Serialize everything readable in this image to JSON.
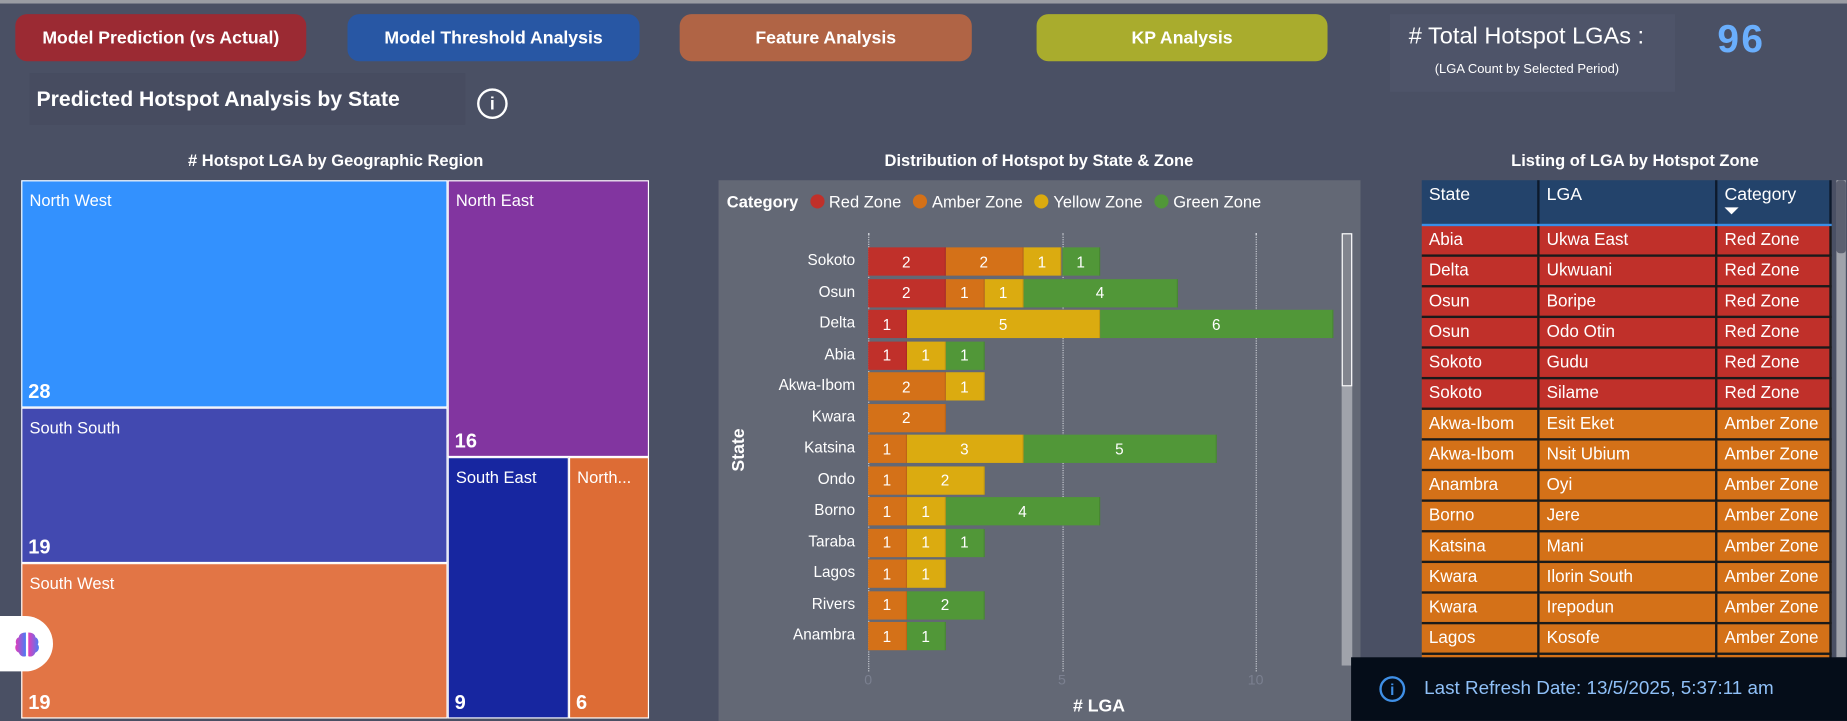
{
  "nav": [
    {
      "label": "Model Prediction (vs Actual)",
      "color": "#9b2a33"
    },
    {
      "label": "Model Threshold Analysis",
      "color": "#2857a4"
    },
    {
      "label": "Feature Analysis",
      "color": "#b06445"
    },
    {
      "label": "KP Analysis",
      "color": "#a9ac2d"
    }
  ],
  "kpi": {
    "title": "# Total Hotspot LGAs :",
    "subtitle": "(LGA Count by Selected Period)",
    "value": "96"
  },
  "page": {
    "title": "Predicted Hotspot Analysis by State",
    "info_icon": "info-circle-icon"
  },
  "treemap": {
    "title": "# Hotspot LGA by Geographic Region",
    "regions": [
      {
        "name": "North West",
        "value": "28",
        "color": "#3391fe"
      },
      {
        "name": "South South",
        "value": "19",
        "color": "#4249b0"
      },
      {
        "name": "South West",
        "value": "19",
        "color": "#e27545"
      },
      {
        "name": "North East",
        "value": "16",
        "color": "#8235a0"
      },
      {
        "name": "South East",
        "value": "9",
        "color": "#1726a0"
      },
      {
        "name": "North...",
        "value": "6",
        "color": "#dd6c35"
      }
    ]
  },
  "chart_data": {
    "type": "bar",
    "orientation": "horizontal",
    "stacked": true,
    "title": "Distribution of Hotspot by State & Zone",
    "legend_title": "Category",
    "legend_position": "top-left",
    "xlabel": "# LGA",
    "ylabel": "State",
    "xlim": [
      0,
      12
    ],
    "xticks": [
      "0",
      "5",
      "10"
    ],
    "categories": [
      "Sokoto",
      "Osun",
      "Delta",
      "Abia",
      "Akwa-Ibom",
      "Kwara",
      "Katsina",
      "Ondo",
      "Borno",
      "Taraba",
      "Lagos",
      "Rivers",
      "Anambra"
    ],
    "series": [
      {
        "name": "Red Zone",
        "color": "#c0302a",
        "values": [
          2,
          2,
          1,
          1,
          0,
          0,
          0,
          0,
          0,
          0,
          0,
          0,
          0
        ]
      },
      {
        "name": "Amber Zone",
        "color": "#d47118",
        "values": [
          2,
          1,
          0,
          0,
          2,
          2,
          1,
          1,
          1,
          1,
          1,
          1,
          1
        ]
      },
      {
        "name": "Yellow Zone",
        "color": "#dbab10",
        "values": [
          1,
          1,
          5,
          1,
          1,
          0,
          3,
          2,
          1,
          1,
          1,
          0,
          0
        ]
      },
      {
        "name": "Green Zone",
        "color": "#519738",
        "values": [
          1,
          4,
          6,
          1,
          0,
          0,
          5,
          0,
          4,
          1,
          0,
          2,
          1
        ]
      }
    ]
  },
  "table": {
    "title": "Listing of LGA by Hotspot Zone",
    "columns": [
      "State",
      "LGA",
      "Category"
    ],
    "zone_colors": {
      "Red Zone": "#c0302a",
      "Amber Zone": "#d47118"
    },
    "rows": [
      [
        "Abia",
        "Ukwa East",
        "Red Zone"
      ],
      [
        "Delta",
        "Ukwuani",
        "Red Zone"
      ],
      [
        "Osun",
        "Boripe",
        "Red Zone"
      ],
      [
        "Osun",
        "Odo Otin",
        "Red Zone"
      ],
      [
        "Sokoto",
        "Gudu",
        "Red Zone"
      ],
      [
        "Sokoto",
        "Silame",
        "Red Zone"
      ],
      [
        "Akwa-Ibom",
        "Esit Eket",
        "Amber Zone"
      ],
      [
        "Akwa-Ibom",
        "Nsit Ubium",
        "Amber Zone"
      ],
      [
        "Anambra",
        "Oyi",
        "Amber Zone"
      ],
      [
        "Borno",
        "Jere",
        "Amber Zone"
      ],
      [
        "Katsina",
        "Mani",
        "Amber Zone"
      ],
      [
        "Kwara",
        "Ilorin South",
        "Amber Zone"
      ],
      [
        "Kwara",
        "Irepodun",
        "Amber Zone"
      ],
      [
        "Lagos",
        "Kosofe",
        "Amber Zone"
      ]
    ]
  },
  "refresh": {
    "text": "Last Refresh Date: 13/5/2025, 5:37:11 am"
  }
}
